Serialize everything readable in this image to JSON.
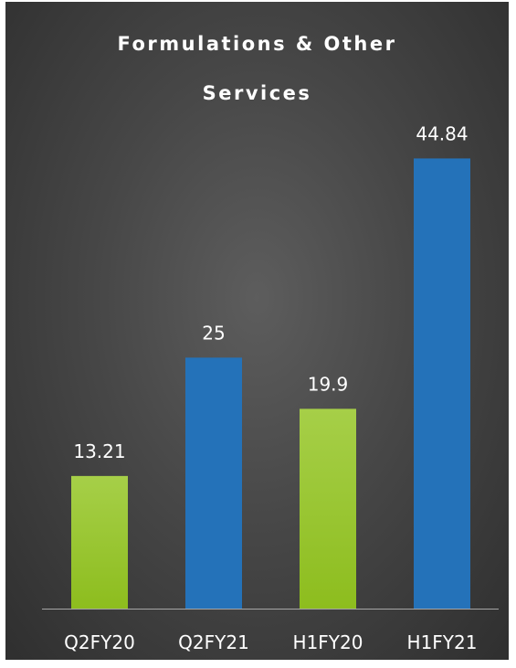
{
  "chart_data": {
    "type": "bar",
    "title_lines": [
      "Formulations & Other",
      "Services"
    ],
    "categories": [
      "Q2FY20",
      "Q2FY21",
      "H1FY20",
      "H1FY21"
    ],
    "values": [
      13.21,
      25,
      19.9,
      44.84
    ],
    "data_labels": [
      "13.21",
      "25",
      "19.9",
      "44.84"
    ],
    "bar_colors": [
      "#8dbd1e",
      "#2472b9",
      "#8dbd1e",
      "#2472b9"
    ],
    "gradient_top_colors": [
      "#a6cf48",
      "#2472b9",
      "#a6cf48",
      "#2472b9"
    ],
    "ylim": [
      0,
      50
    ],
    "grid": false,
    "legend": "none",
    "xlabel": "",
    "ylabel": ""
  },
  "colors": {
    "background_center": "#5d5d5d",
    "background_edge": "#2f2f2f",
    "axis_line": "#a6a6a6",
    "text": "#ffffff"
  }
}
